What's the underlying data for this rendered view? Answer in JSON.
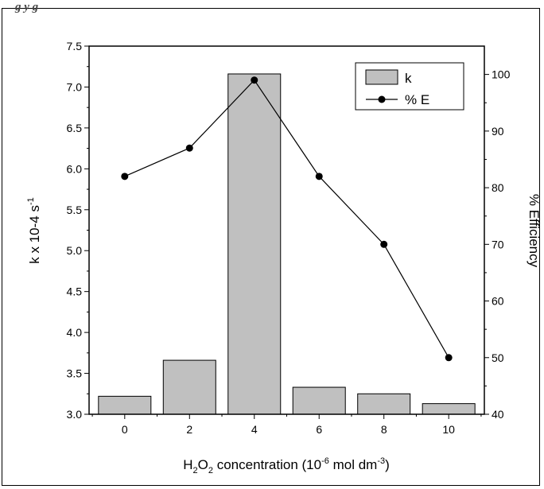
{
  "caption_fragment": "g         y          g",
  "chart_data": {
    "type": "bar+line",
    "title": "",
    "xlabel": {
      "base": "H",
      "sub1": "2",
      "mid": "O",
      "sub2": "2",
      "text": " concentration (10",
      "sup1": "-6",
      "text2": " mol dm",
      "sup2": "-3",
      "end": ")"
    },
    "ylabel_left": {
      "text": "k x 10-4 s",
      "sup": "-1"
    },
    "ylabel_right": "% Efficiency",
    "categories": [
      "0",
      "2",
      "4",
      "6",
      "8",
      "10"
    ],
    "x_values": [
      0,
      2,
      4,
      6,
      8,
      10
    ],
    "xlim": [
      -1.1,
      11.1
    ],
    "ylim_left": [
      3.0,
      7.5
    ],
    "ylim_right": [
      40,
      105
    ],
    "left_ticks": [
      "3.0",
      "3.5",
      "4.0",
      "4.5",
      "5.0",
      "5.5",
      "6.0",
      "6.5",
      "7.0",
      "7.5"
    ],
    "right_ticks": [
      "40",
      "50",
      "60",
      "70",
      "80",
      "90",
      "100"
    ],
    "series": [
      {
        "name": "k",
        "kind": "bar",
        "axis": "left",
        "color": "#c0c0c0",
        "values": [
          3.22,
          3.66,
          7.16,
          3.33,
          3.25,
          3.13
        ]
      },
      {
        "name": "% E",
        "kind": "line",
        "axis": "right",
        "color": "#000000",
        "values": [
          82,
          87,
          99,
          82,
          70,
          50
        ]
      }
    ],
    "legend_position": "top-right",
    "grid": false
  }
}
